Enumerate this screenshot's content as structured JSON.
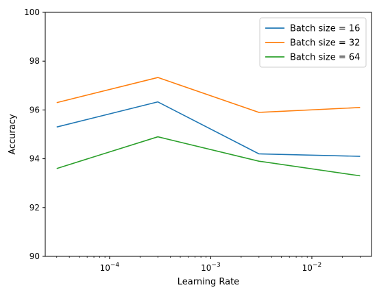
{
  "chart_data": {
    "type": "line",
    "title": "",
    "xlabel": "Learning Rate",
    "ylabel": "Accuracy",
    "x_scale": "log",
    "x": [
      3e-05,
      0.0003,
      0.003,
      0.03
    ],
    "xlim": [
      2.31e-05,
      0.0389
    ],
    "ylim": [
      90,
      100
    ],
    "y_ticks": [
      90,
      92,
      94,
      96,
      98,
      100
    ],
    "x_ticks": [
      {
        "value": 0.0001,
        "base": "10",
        "exp": "−4"
      },
      {
        "value": 0.001,
        "base": "10",
        "exp": "−3"
      },
      {
        "value": 0.01,
        "base": "10",
        "exp": "−2"
      }
    ],
    "grid": false,
    "legend_position": "top-right",
    "series": [
      {
        "name": "Batch size = 16",
        "color": "#1f77b4",
        "values": [
          95.3,
          96.33,
          94.2,
          94.1
        ]
      },
      {
        "name": "Batch size = 32",
        "color": "#ff7f0e",
        "values": [
          96.3,
          97.33,
          95.9,
          96.1
        ]
      },
      {
        "name": "Batch size = 64",
        "color": "#2ca02c",
        "values": [
          93.6,
          94.9,
          93.9,
          93.3
        ]
      }
    ]
  }
}
